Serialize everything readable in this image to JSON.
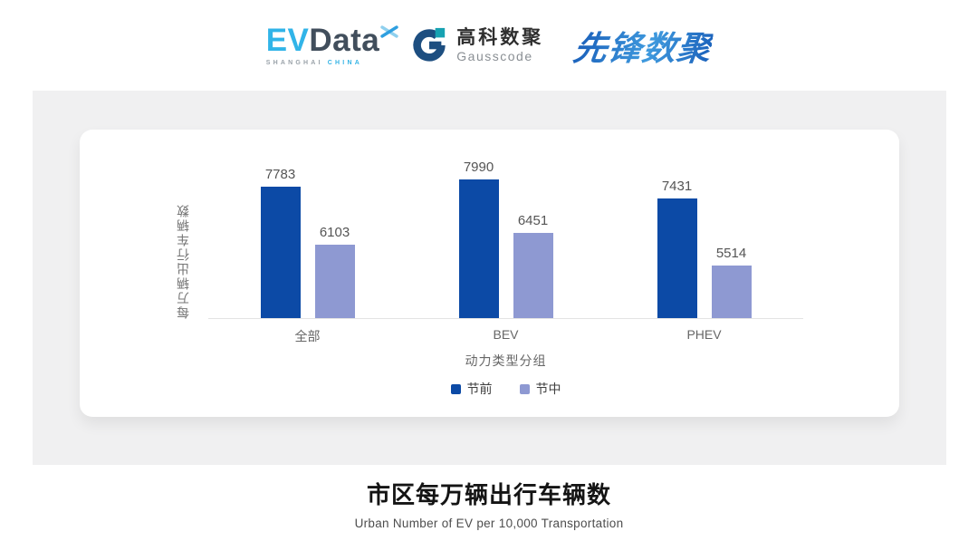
{
  "header": {
    "evdata_logo": {
      "ev": "EV",
      "data": "Data",
      "sub_left": "SHANGHAI",
      "sub_right": "CHINA"
    },
    "gausscode_logo": {
      "cn": "高科数聚",
      "en": "Gausscode"
    },
    "pioneer_logo": "先锋数聚"
  },
  "chart_data": {
    "type": "bar",
    "title": "市区每万辆出行车辆数",
    "subtitle": "Urban Number of EV per 10,000 Transportation",
    "categories": [
      "全部",
      "BEV",
      "PHEV"
    ],
    "series": [
      {
        "name": "节前",
        "color": "#0c4aa6",
        "values": [
          7783,
          7990,
          7431
        ]
      },
      {
        "name": "节中",
        "color": "#8e99d2",
        "values": [
          6103,
          6451,
          5514
        ]
      }
    ],
    "xlabel": "动力类型分组",
    "ylabel": "每万辆出行车辆数",
    "ylim": [
      4000,
      8400
    ],
    "grid": false,
    "legend_position": "bottom",
    "value_labels": true
  },
  "colors": {
    "panel_bg": "#f0f0f1",
    "card_bg": "#ffffff",
    "axis_line": "#e3e3e3",
    "brand_cyan": "#31b4e8",
    "brand_slate": "#414e5c",
    "brand_pioneer_blue": "#2b7bd0",
    "gausscode_navy": "#1d4e80",
    "gausscode_teal": "#17a2b2"
  }
}
